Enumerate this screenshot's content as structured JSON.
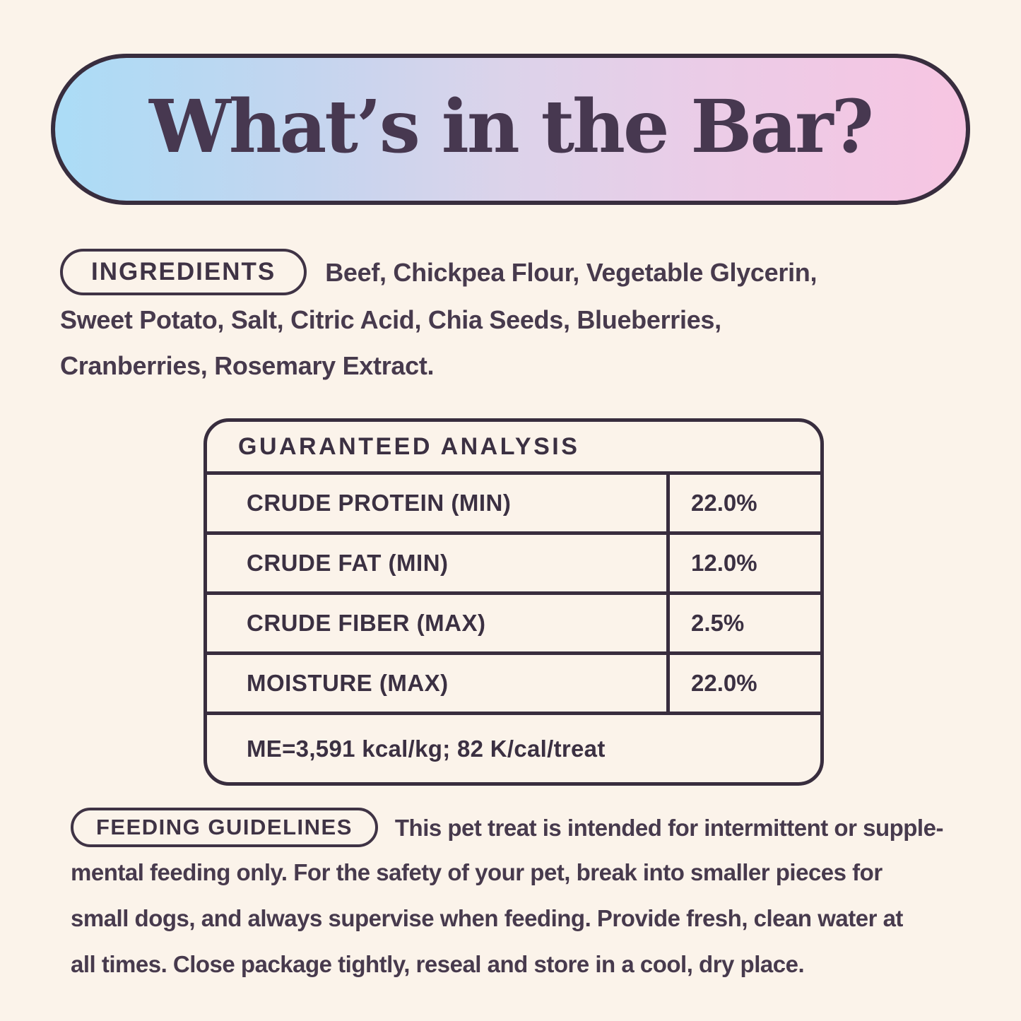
{
  "page": {
    "background_color": "#FBF3EA",
    "text_color": "#473A4D",
    "border_color": "#382D3E"
  },
  "header": {
    "title": "What’s in the Bar?",
    "gradient_left_color": "#ABDCF6",
    "gradient_mid_color": "#DCD3EA",
    "gradient_right_color": "#F7C5E2"
  },
  "ingredients": {
    "label": "INGREDIENTS",
    "line1": "Beef, Chickpea Flour, Vegetable Glycerin,",
    "line2": "Sweet Potato, Salt, Citric Acid, Chia Seeds, Blueberries,",
    "line3": "Cranberries, Rosemary Extract."
  },
  "analysis": {
    "title": "GUARANTEED ANALYSIS",
    "rows": [
      {
        "label": "CRUDE PROTEIN (MIN)",
        "value": "22.0%"
      },
      {
        "label": "CRUDE FAT (MIN)",
        "value": "12.0%"
      },
      {
        "label": "CRUDE FIBER (MAX)",
        "value": "2.5%"
      },
      {
        "label": "MOISTURE (MAX)",
        "value": "22.0%"
      }
    ],
    "footnote": "ME=3,591 kcal/kg; 82 K/cal/treat"
  },
  "feeding": {
    "label": "FEEDING GUIDELINES",
    "line1": "This pet treat is intended for intermittent or supple-",
    "line2": "mental feeding only. For the safety of your pet, break into smaller pieces for",
    "line3": "small dogs, and always supervise when feeding. Provide fresh, clean water at",
    "line4": "all times. Close package tightly, reseal and store in a cool, dry place."
  }
}
